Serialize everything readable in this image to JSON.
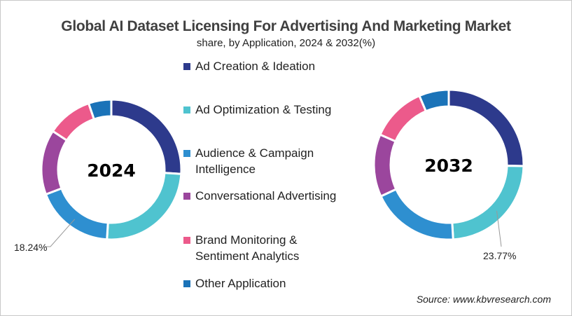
{
  "chart_data": {
    "type": "pie",
    "title": "Global AI Dataset Licensing For Advertising And Marketing Market",
    "subtitle": "share, by Application, 2024 & 2032(%)",
    "categories": [
      "Ad Creation & Ideation",
      "Ad Optimization & Testing",
      "Audience & Campaign Intelligence",
      "Conversational Advertising",
      "Brand Monitoring & Sentiment Analytics",
      "Other Application"
    ],
    "legend_lines": [
      [
        "Ad Creation & Ideation"
      ],
      [
        "Ad Optimization & Testing"
      ],
      [
        "Audience & Campaign",
        "Intelligence"
      ],
      [
        "Conversational Advertising"
      ],
      [
        "Brand Monitoring &",
        "Sentiment Analytics"
      ],
      [
        "Other Application"
      ]
    ],
    "colors": [
      "#2d3a8c",
      "#4fc3cf",
      "#2e8fd0",
      "#9b469d",
      "#ec5a8b",
      "#1b73b8"
    ],
    "legend_position": "center",
    "donuts": [
      {
        "label": "2024",
        "values": [
          26.0,
          25.0,
          18.24,
          15.0,
          10.5,
          5.26
        ],
        "data_label": "18.24%",
        "labelled_category": "Audience & Campaign Intelligence"
      },
      {
        "label": "2032",
        "values": [
          25.3,
          23.77,
          19.0,
          13.5,
          12.0,
          6.43
        ],
        "data_label": "23.77%",
        "labelled_category": "Ad Optimization & Testing"
      }
    ]
  },
  "source": "Source: www.kbvresearch.com"
}
